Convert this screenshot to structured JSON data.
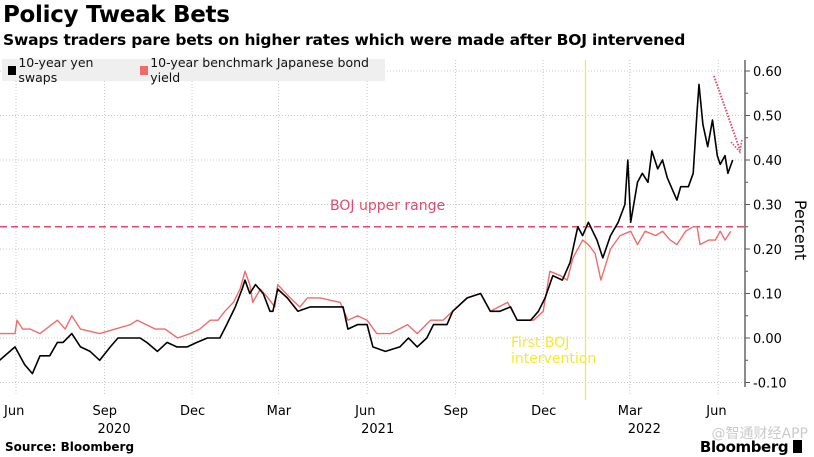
{
  "title": "Policy Tweak Bets",
  "subtitle": "Swaps traders pare bets on higher rates which were made after BOJ intervened",
  "source": "Source: Bloomberg",
  "brand": "Bloomberg",
  "watermark": "@智通财经APP",
  "chart_data": {
    "type": "line",
    "ylabel": "Percent",
    "ylim": [
      -0.12,
      0.62
    ],
    "yticks": [
      "0.60",
      "0.50",
      "0.40",
      "0.30",
      "0.20",
      "0.10",
      "0.00",
      "-0.10"
    ],
    "ytick_values": [
      0.6,
      0.5,
      0.4,
      0.3,
      0.2,
      0.1,
      0.0,
      -0.1
    ],
    "y_axis_side": "right",
    "grid": true,
    "legend_position": "top-left",
    "xticks": [
      {
        "date": "2020-06-01",
        "label": "Jun",
        "year": ""
      },
      {
        "date": "2020-09-01",
        "label": "Sep",
        "year": "2020"
      },
      {
        "date": "2020-12-01",
        "label": "Dec",
        "year": ""
      },
      {
        "date": "2021-03-01",
        "label": "Mar",
        "year": ""
      },
      {
        "date": "2021-06-01",
        "label": "Jun",
        "year": "2021"
      },
      {
        "date": "2021-09-01",
        "label": "Sep",
        "year": ""
      },
      {
        "date": "2021-12-01",
        "label": "Dec",
        "year": ""
      },
      {
        "date": "2022-03-01",
        "label": "Mar",
        "year": "2022"
      },
      {
        "date": "2022-06-01",
        "label": "Jun",
        "year": ""
      }
    ],
    "annotations": {
      "upper_range": {
        "label": "BOJ upper range",
        "value": 0.25,
        "color": "#e8476a"
      },
      "intervention": {
        "label_line1": "First BOJ",
        "label_line2": "intervention",
        "date": "2022-01-14",
        "color": "#f5ea2a"
      },
      "arrow_color": "#e8476a"
    },
    "series": [
      {
        "name": "10-year yen swaps",
        "color": "#000000",
        "points": [
          [
            "2020-05-15",
            -0.05
          ],
          [
            "2020-05-31",
            -0.02
          ],
          [
            "2020-06-10",
            -0.06
          ],
          [
            "2020-06-18",
            -0.08
          ],
          [
            "2020-06-26",
            -0.04
          ],
          [
            "2020-07-06",
            -0.04
          ],
          [
            "2020-07-14",
            -0.01
          ],
          [
            "2020-07-20",
            -0.01
          ],
          [
            "2020-07-29",
            0.01
          ],
          [
            "2020-08-07",
            -0.02
          ],
          [
            "2020-08-17",
            -0.03
          ],
          [
            "2020-08-27",
            -0.05
          ],
          [
            "2020-09-07",
            -0.02
          ],
          [
            "2020-09-15",
            0.0
          ],
          [
            "2020-09-24",
            0.0
          ],
          [
            "2020-10-08",
            0.0
          ],
          [
            "2020-10-15",
            -0.01
          ],
          [
            "2020-10-26",
            -0.03
          ],
          [
            "2020-11-05",
            -0.01
          ],
          [
            "2020-11-15",
            -0.02
          ],
          [
            "2020-11-26",
            -0.02
          ],
          [
            "2020-12-06",
            -0.01
          ],
          [
            "2020-12-17",
            0.0
          ],
          [
            "2020-12-30",
            0.0
          ],
          [
            "2021-01-06",
            0.03
          ],
          [
            "2021-01-15",
            0.07
          ],
          [
            "2021-01-22",
            0.11
          ],
          [
            "2021-01-25",
            0.13
          ],
          [
            "2021-01-30",
            0.1
          ],
          [
            "2021-02-05",
            0.12
          ],
          [
            "2021-02-13",
            0.1
          ],
          [
            "2021-02-20",
            0.06
          ],
          [
            "2021-02-23",
            0.06
          ],
          [
            "2021-02-28",
            0.11
          ],
          [
            "2021-03-10",
            0.09
          ],
          [
            "2021-03-21",
            0.06
          ],
          [
            "2021-04-03",
            0.07
          ],
          [
            "2021-04-13",
            0.07
          ],
          [
            "2021-04-27",
            0.07
          ],
          [
            "2021-05-07",
            0.07
          ],
          [
            "2021-05-12",
            0.02
          ],
          [
            "2021-05-22",
            0.03
          ],
          [
            "2021-06-01",
            0.03
          ],
          [
            "2021-06-07",
            -0.02
          ],
          [
            "2021-06-20",
            -0.03
          ],
          [
            "2021-07-05",
            -0.02
          ],
          [
            "2021-07-14",
            0.0
          ],
          [
            "2021-07-23",
            -0.02
          ],
          [
            "2021-08-02",
            0.0
          ],
          [
            "2021-08-09",
            0.03
          ],
          [
            "2021-08-23",
            0.03
          ],
          [
            "2021-08-29",
            0.06
          ],
          [
            "2021-09-13",
            0.09
          ],
          [
            "2021-09-27",
            0.1
          ],
          [
            "2021-10-07",
            0.06
          ],
          [
            "2021-10-17",
            0.06
          ],
          [
            "2021-10-28",
            0.07
          ],
          [
            "2021-11-04",
            0.04
          ],
          [
            "2021-11-18",
            0.04
          ],
          [
            "2021-11-26",
            0.06
          ],
          [
            "2021-12-03",
            0.09
          ],
          [
            "2021-12-11",
            0.14
          ],
          [
            "2021-12-21",
            0.13
          ],
          [
            "2021-12-29",
            0.17
          ],
          [
            "2022-01-03",
            0.22
          ],
          [
            "2022-01-06",
            0.25
          ],
          [
            "2022-01-11",
            0.23
          ],
          [
            "2022-01-17",
            0.26
          ],
          [
            "2022-01-26",
            0.22
          ],
          [
            "2022-02-01",
            0.18
          ],
          [
            "2022-02-09",
            0.23
          ],
          [
            "2022-02-17",
            0.26
          ],
          [
            "2022-02-24",
            0.3
          ],
          [
            "2022-02-27",
            0.4
          ],
          [
            "2022-03-02",
            0.26
          ],
          [
            "2022-03-09",
            0.35
          ],
          [
            "2022-03-14",
            0.37
          ],
          [
            "2022-03-20",
            0.35
          ],
          [
            "2022-03-24",
            0.42
          ],
          [
            "2022-03-30",
            0.38
          ],
          [
            "2022-04-04",
            0.4
          ],
          [
            "2022-04-09",
            0.36
          ],
          [
            "2022-04-19",
            0.31
          ],
          [
            "2022-04-23",
            0.34
          ],
          [
            "2022-05-01",
            0.34
          ],
          [
            "2022-05-06",
            0.37
          ],
          [
            "2022-05-10",
            0.51
          ],
          [
            "2022-05-12",
            0.57
          ],
          [
            "2022-05-16",
            0.48
          ],
          [
            "2022-05-21",
            0.43
          ],
          [
            "2022-05-26",
            0.49
          ],
          [
            "2022-05-31",
            0.41
          ],
          [
            "2022-06-03",
            0.39
          ],
          [
            "2022-06-08",
            0.41
          ],
          [
            "2022-06-11",
            0.37
          ],
          [
            "2022-06-16",
            0.4
          ]
        ]
      },
      {
        "name": "10-year benchmark Japanese bond yield",
        "color": "#f26b6b",
        "points": [
          [
            "2020-05-15",
            0.01
          ],
          [
            "2020-05-31",
            0.01
          ],
          [
            "2020-06-02",
            0.04
          ],
          [
            "2020-06-08",
            0.02
          ],
          [
            "2020-06-16",
            0.02
          ],
          [
            "2020-06-26",
            0.01
          ],
          [
            "2020-07-14",
            0.04
          ],
          [
            "2020-07-22",
            0.02
          ],
          [
            "2020-07-29",
            0.05
          ],
          [
            "2020-08-07",
            0.02
          ],
          [
            "2020-08-27",
            0.01
          ],
          [
            "2020-09-12",
            0.02
          ],
          [
            "2020-09-28",
            0.03
          ],
          [
            "2020-10-05",
            0.04
          ],
          [
            "2020-10-24",
            0.02
          ],
          [
            "2020-11-03",
            0.02
          ],
          [
            "2020-11-16",
            0.0
          ],
          [
            "2020-11-29",
            0.01
          ],
          [
            "2020-12-09",
            0.02
          ],
          [
            "2020-12-20",
            0.04
          ],
          [
            "2020-12-28",
            0.04
          ],
          [
            "2021-01-04",
            0.06
          ],
          [
            "2021-01-13",
            0.08
          ],
          [
            "2021-01-20",
            0.11
          ],
          [
            "2021-01-25",
            0.15
          ],
          [
            "2021-01-30",
            0.12
          ],
          [
            "2021-02-02",
            0.08
          ],
          [
            "2021-02-10",
            0.11
          ],
          [
            "2021-02-18",
            0.09
          ],
          [
            "2021-02-25",
            0.07
          ],
          [
            "2021-02-28",
            0.12
          ],
          [
            "2021-03-13",
            0.09
          ],
          [
            "2021-03-23",
            0.07
          ],
          [
            "2021-03-31",
            0.09
          ],
          [
            "2021-04-13",
            0.09
          ],
          [
            "2021-05-04",
            0.08
          ],
          [
            "2021-05-12",
            0.04
          ],
          [
            "2021-05-22",
            0.05
          ],
          [
            "2021-06-01",
            0.04
          ],
          [
            "2021-06-11",
            0.01
          ],
          [
            "2021-06-25",
            0.01
          ],
          [
            "2021-07-13",
            0.03
          ],
          [
            "2021-07-23",
            0.01
          ],
          [
            "2021-08-06",
            0.04
          ],
          [
            "2021-08-19",
            0.04
          ],
          [
            "2021-08-29",
            0.06
          ],
          [
            "2021-09-13",
            0.09
          ],
          [
            "2021-09-27",
            0.1
          ],
          [
            "2021-10-07",
            0.06
          ],
          [
            "2021-10-25",
            0.08
          ],
          [
            "2021-11-04",
            0.04
          ],
          [
            "2021-11-21",
            0.04
          ],
          [
            "2021-12-01",
            0.06
          ],
          [
            "2021-12-08",
            0.15
          ],
          [
            "2021-12-19",
            0.14
          ],
          [
            "2021-12-26",
            0.13
          ],
          [
            "2022-01-01",
            0.18
          ],
          [
            "2022-01-11",
            0.22
          ],
          [
            "2022-01-17",
            0.21
          ],
          [
            "2022-01-24",
            0.19
          ],
          [
            "2022-01-30",
            0.13
          ],
          [
            "2022-02-09",
            0.2
          ],
          [
            "2022-02-19",
            0.23
          ],
          [
            "2022-03-02",
            0.24
          ],
          [
            "2022-03-09",
            0.21
          ],
          [
            "2022-03-17",
            0.24
          ],
          [
            "2022-03-28",
            0.23
          ],
          [
            "2022-04-04",
            0.24
          ],
          [
            "2022-04-12",
            0.22
          ],
          [
            "2022-04-19",
            0.21
          ],
          [
            "2022-04-28",
            0.24
          ],
          [
            "2022-05-06",
            0.25
          ],
          [
            "2022-05-10",
            0.25
          ],
          [
            "2022-05-13",
            0.21
          ],
          [
            "2022-05-22",
            0.22
          ],
          [
            "2022-05-29",
            0.22
          ],
          [
            "2022-06-03",
            0.24
          ],
          [
            "2022-06-08",
            0.22
          ],
          [
            "2022-06-14",
            0.24
          ]
        ]
      }
    ]
  }
}
